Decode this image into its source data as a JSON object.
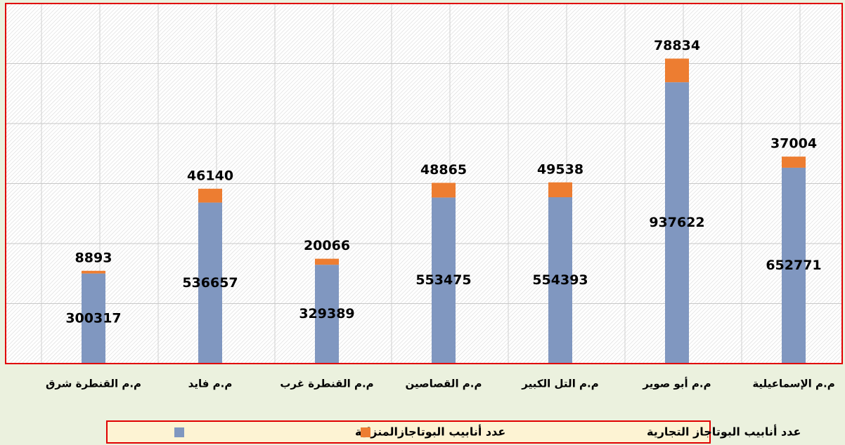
{
  "chart_data": {
    "type": "stacked_bar",
    "categories": [
      "م.م القنطرة شرق",
      "م.م فايد",
      "م.م القنطرة غرب",
      "م.م القصاصين",
      "م.م التل الكبير",
      "م.م أبو صوير",
      "م.م الإسماعيلية"
    ],
    "series": [
      {
        "name": "عدد أنابيب البوتاجازالمنزلية",
        "color": "#8097c0",
        "values": [
          300317,
          536657,
          329389,
          553475,
          554393,
          937622,
          652771
        ]
      },
      {
        "name": "عدد أنابيب البوتاجاز التجارية",
        "color": "#ed7d31",
        "values": [
          8893,
          46140,
          20066,
          48865,
          49538,
          78834,
          37004
        ]
      }
    ],
    "ylim": [
      0,
      1200000
    ],
    "yticks": [
      0,
      200000,
      400000,
      600000,
      800000,
      1000000,
      1200000
    ],
    "grid": true
  }
}
